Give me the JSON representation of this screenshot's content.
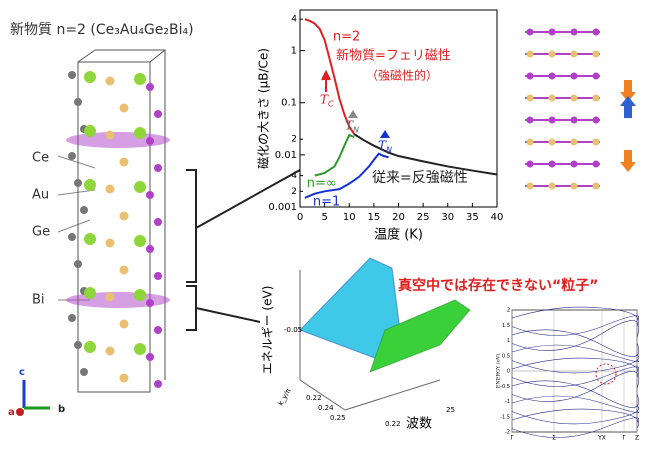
{
  "title": "新物質 n=2 (Ce₃Au₄Ge₂Bi₄)",
  "atom_labels": [
    "Ce",
    "Au",
    "Ge",
    "Bi"
  ],
  "axis_letters": [
    "c",
    "a",
    "b"
  ],
  "magnetization_chart": {
    "type": "line",
    "ylabel": "磁化の大きさ (μB/Ce)",
    "xlabel": "温度 (K)",
    "xlim": [
      0,
      40
    ],
    "xticks": [
      0,
      5,
      10,
      15,
      20,
      25,
      30,
      35,
      40
    ],
    "ylim": [
      0.001,
      6
    ],
    "log_y": true,
    "yticks": [
      0.001,
      {
        "value": 0.002,
        "label": "2"
      },
      {
        "value": 0.004,
        "label": "4"
      },
      0.01,
      {
        "value": 0.02,
        "label": "2"
      },
      0.1,
      1,
      {
        "value": 4,
        "label": "4"
      }
    ],
    "series": [
      {
        "name": "n=2",
        "color": "#e02020",
        "x": [
          1,
          2,
          3,
          4,
          5,
          6,
          7,
          8,
          9,
          10,
          11
        ],
        "values": [
          4,
          3.7,
          3.3,
          2.6,
          1.6,
          0.7,
          0.3,
          0.12,
          0.06,
          0.035,
          0.025
        ]
      },
      {
        "name": "n=∞",
        "color": "#2a9a2a",
        "x": [
          3,
          5,
          7,
          8,
          9,
          10,
          11
        ],
        "values": [
          0.004,
          0.0045,
          0.006,
          0.009,
          0.015,
          0.024,
          0.022
        ]
      },
      {
        "name": "n=1",
        "color": "#1530d0",
        "x": [
          1,
          3,
          5,
          8,
          10,
          12,
          14,
          15,
          16,
          17,
          18
        ],
        "values": [
          0.0015,
          0.0018,
          0.002,
          0.0022,
          0.0028,
          0.0038,
          0.006,
          0.008,
          0.0105,
          0.0095,
          0.009
        ]
      },
      {
        "color": "#222222",
        "x": [
          11,
          13,
          15,
          18,
          20,
          25,
          30,
          35,
          40
        ],
        "values": [
          0.025,
          0.019,
          0.015,
          0.011,
          0.0095,
          0.0075,
          0.006,
          0.005,
          0.0042
        ]
      }
    ],
    "annotations": [
      "新物質=フェリ磁性",
      "（強磁性的）",
      "従来=反強磁性"
    ],
    "transitions": [
      {
        "symbol": "T",
        "sub": "C"
      },
      {
        "symbol": "T",
        "sub": "N"
      },
      {
        "symbol": "T",
        "sub": "N"
      }
    ]
  },
  "band_3d": {
    "ylabel": "エネルギー (eV)",
    "ytick": "-0.05",
    "xlabel": "k_y/π",
    "xticks": [
      "0.22",
      "0.24",
      "0.25"
    ],
    "depth_label": "波数",
    "depth_ticks": [
      "25",
      "0.22"
    ]
  },
  "caption": "真空中では存在できない“粒子”",
  "band_plot": {
    "ylabel": "ENERGY (eV)",
    "yticks": [
      2,
      1.5,
      1,
      0.5,
      0,
      -0.5,
      -1,
      -1.5,
      -2
    ],
    "kpoints": [
      "Γ",
      "Σ",
      "YX",
      "Γ",
      "Z"
    ]
  }
}
